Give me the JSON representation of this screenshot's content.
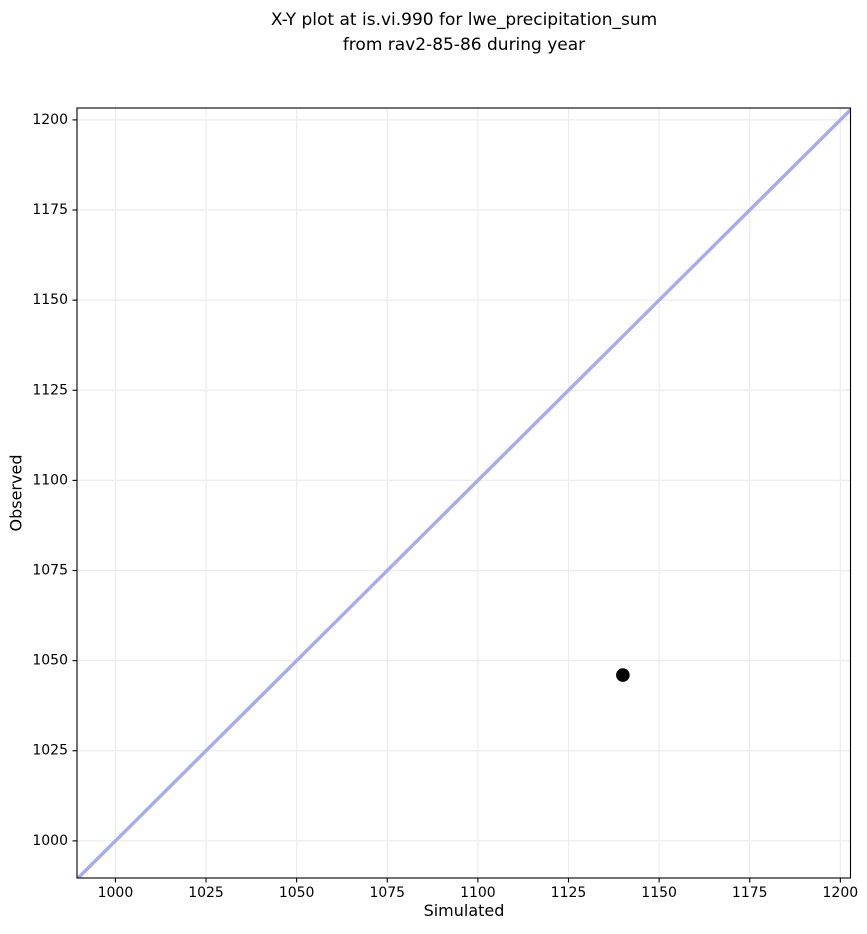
{
  "chart_data": {
    "type": "scatter",
    "title_lines": [
      "X-Y plot at is.vi.990 for lwe_precipitation_sum",
      "from rav2-85-86 during year"
    ],
    "xlabel": "Simulated",
    "ylabel": "Observed",
    "xlim": [
      989.4,
      1202.8
    ],
    "ylim": [
      989.7,
      1203.3
    ],
    "xticks": [
      1000,
      1025,
      1050,
      1075,
      1100,
      1125,
      1150,
      1175,
      1200
    ],
    "yticks": [
      1000,
      1025,
      1050,
      1075,
      1100,
      1125,
      1150,
      1175,
      1200
    ],
    "grid": true,
    "series": [
      {
        "name": "observed-vs-simulated-point",
        "points": [
          {
            "x": 1140,
            "y": 1046
          }
        ],
        "color": "#000000",
        "marker_radius": 6.8
      }
    ],
    "identity_line": {
      "name": "one-to-one-line",
      "x": [
        985,
        1207
      ],
      "y": [
        985,
        1207
      ],
      "color": "#a5acf0",
      "width": 3.4
    },
    "colors": {
      "grid": "#ececec",
      "frame": "#000000",
      "background": "#ffffff",
      "text": "#000000"
    }
  }
}
